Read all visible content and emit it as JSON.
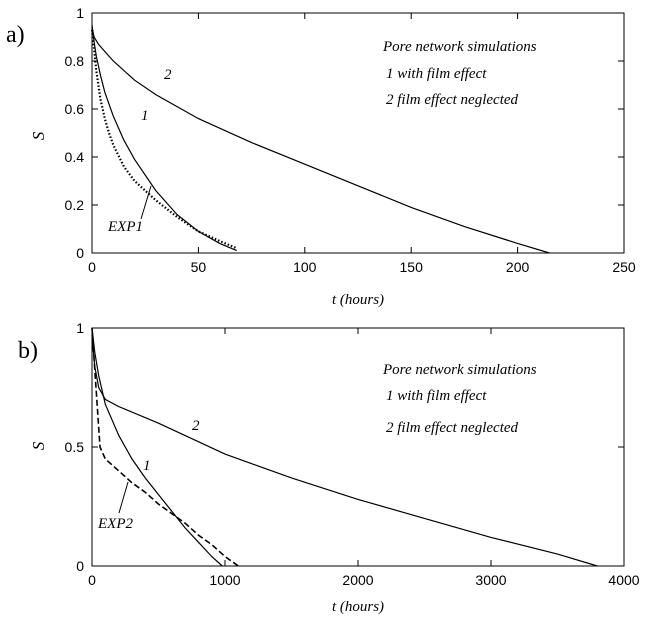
{
  "chart_data": [
    {
      "type": "line",
      "panel": "a)",
      "xlabel": "t (hours)",
      "ylabel": "S",
      "xlim": [
        0,
        250
      ],
      "ylim": [
        0,
        1
      ],
      "xticks": [
        0,
        50,
        100,
        150,
        200,
        250
      ],
      "yticks": [
        0,
        0.2,
        0.4,
        0.6,
        0.8,
        1
      ],
      "legend": {
        "title": "Pore network simulations",
        "entries": [
          "1 with film effect",
          "2 film effect neglected"
        ]
      },
      "annotations": {
        "curve1": "1",
        "curve2": "2",
        "exp": "EXP1"
      },
      "series": [
        {
          "name": "1",
          "style": "solid",
          "x": [
            0,
            1,
            2,
            4,
            6,
            10,
            15,
            20,
            30,
            40,
            50,
            60,
            68
          ],
          "y": [
            0.95,
            0.88,
            0.82,
            0.74,
            0.67,
            0.57,
            0.47,
            0.39,
            0.26,
            0.16,
            0.09,
            0.04,
            0.01
          ]
        },
        {
          "name": "2",
          "style": "solid",
          "x": [
            0,
            1,
            3,
            5,
            10,
            20,
            30,
            40,
            50,
            75,
            100,
            125,
            150,
            175,
            200,
            215
          ],
          "y": [
            0.94,
            0.9,
            0.87,
            0.85,
            0.8,
            0.72,
            0.66,
            0.61,
            0.56,
            0.46,
            0.37,
            0.28,
            0.19,
            0.11,
            0.04,
            0.0
          ]
        },
        {
          "name": "EXP1",
          "style": "dotted",
          "x": [
            0,
            1,
            2,
            4,
            6,
            8,
            10,
            15,
            20,
            25,
            30,
            40,
            50,
            60,
            68
          ],
          "y": [
            0.93,
            0.85,
            0.76,
            0.64,
            0.56,
            0.5,
            0.45,
            0.36,
            0.3,
            0.26,
            0.22,
            0.15,
            0.09,
            0.05,
            0.02
          ]
        }
      ]
    },
    {
      "type": "line",
      "panel": "b)",
      "xlabel": "t (hours)",
      "ylabel": "S",
      "xlim": [
        0,
        4000
      ],
      "ylim": [
        0,
        1
      ],
      "xticks": [
        0,
        1000,
        2000,
        3000,
        4000
      ],
      "yticks": [
        0,
        0.5,
        1
      ],
      "legend": {
        "title": "Pore network simulations",
        "entries": [
          "1 with film effect",
          "2 film effect neglected"
        ]
      },
      "annotations": {
        "curve1": "1",
        "curve2": "2",
        "exp": "EXP2"
      },
      "series": [
        {
          "name": "1",
          "style": "solid",
          "x": [
            0,
            20,
            50,
            100,
            200,
            300,
            400,
            500,
            600,
            700,
            800,
            900,
            980
          ],
          "y": [
            1.0,
            0.9,
            0.8,
            0.68,
            0.55,
            0.45,
            0.37,
            0.3,
            0.23,
            0.16,
            0.1,
            0.04,
            0.0
          ]
        },
        {
          "name": "2",
          "style": "solid",
          "x": [
            0,
            20,
            50,
            100,
            200,
            500,
            1000,
            1500,
            2000,
            2500,
            3000,
            3500,
            3800
          ],
          "y": [
            0.97,
            0.84,
            0.75,
            0.7,
            0.67,
            0.6,
            0.47,
            0.37,
            0.28,
            0.2,
            0.12,
            0.05,
            0.0
          ]
        },
        {
          "name": "EXP2",
          "style": "dashed",
          "x": [
            0,
            30,
            60,
            100,
            200,
            300,
            400,
            500,
            600,
            700,
            800,
            900,
            1000,
            1100
          ],
          "y": [
            1.0,
            0.75,
            0.5,
            0.45,
            0.4,
            0.35,
            0.31,
            0.26,
            0.22,
            0.18,
            0.13,
            0.09,
            0.04,
            0.0
          ]
        }
      ]
    }
  ]
}
